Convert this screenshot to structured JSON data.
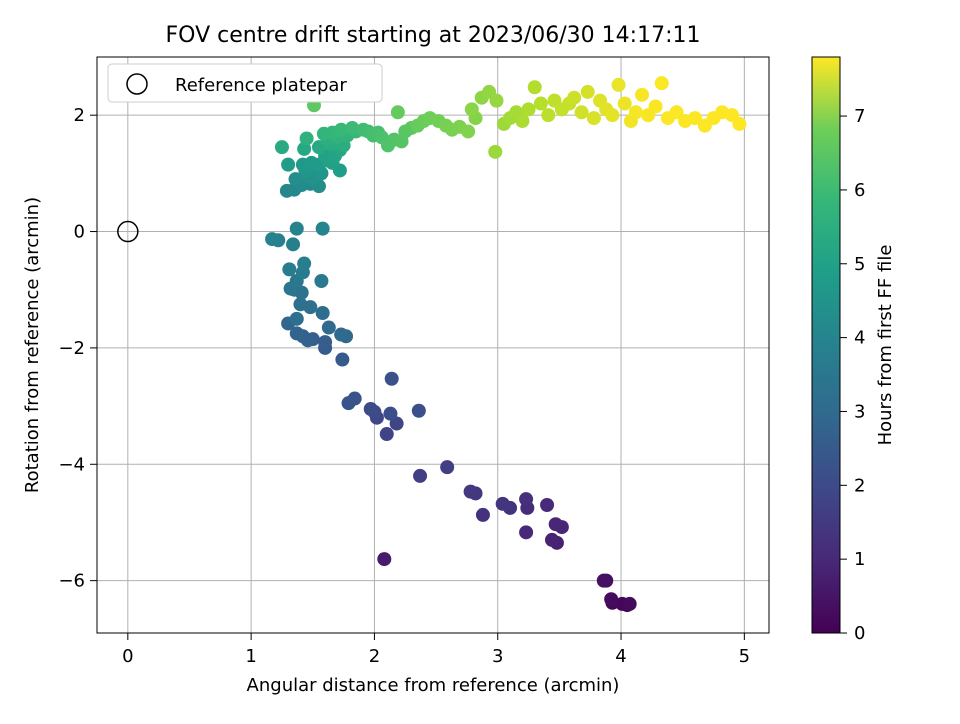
{
  "chart_data": {
    "type": "scatter",
    "title": "FOV centre drift starting at 2023/06/30 14:17:11",
    "xlabel": "Angular distance from reference (arcmin)",
    "ylabel": "Rotation from reference (arcmin)",
    "xlim": [
      -0.25,
      5.2
    ],
    "ylim": [
      -6.9,
      3.0
    ],
    "x_ticks": [
      0,
      1,
      2,
      3,
      4,
      5
    ],
    "y_ticks": [
      -6,
      -4,
      -2,
      0,
      2
    ],
    "grid": true,
    "legend": {
      "placement": "top-left",
      "entries": [
        "Reference platepar"
      ]
    },
    "reference_point": {
      "x": 0,
      "y": 0
    },
    "colorbar": {
      "label": "Hours from first FF file",
      "range": [
        0,
        7.8
      ],
      "ticks": [
        0,
        1,
        2,
        3,
        4,
        5,
        6,
        7
      ],
      "colormap": "viridis"
    },
    "points": [
      {
        "x": 4.05,
        "y": -6.42,
        "c": 0.05
      },
      {
        "x": 4.01,
        "y": -6.4,
        "c": 0.1
      },
      {
        "x": 3.93,
        "y": -6.38,
        "c": 0.15
      },
      {
        "x": 4.07,
        "y": -6.4,
        "c": 0.2
      },
      {
        "x": 3.92,
        "y": -6.32,
        "c": 0.25
      },
      {
        "x": 3.88,
        "y": -6.0,
        "c": 0.3
      },
      {
        "x": 3.86,
        "y": -6.0,
        "c": 0.35
      },
      {
        "x": 2.08,
        "y": -5.63,
        "c": 0.6
      },
      {
        "x": 3.48,
        "y": -5.35,
        "c": 0.7
      },
      {
        "x": 3.44,
        "y": -5.3,
        "c": 0.75
      },
      {
        "x": 3.52,
        "y": -5.08,
        "c": 0.8
      },
      {
        "x": 3.47,
        "y": -5.03,
        "c": 0.85
      },
      {
        "x": 3.23,
        "y": -5.17,
        "c": 0.9
      },
      {
        "x": 3.4,
        "y": -4.7,
        "c": 0.95
      },
      {
        "x": 3.24,
        "y": -4.75,
        "c": 1.0
      },
      {
        "x": 3.23,
        "y": -4.6,
        "c": 1.05
      },
      {
        "x": 2.88,
        "y": -4.87,
        "c": 1.1
      },
      {
        "x": 3.1,
        "y": -4.75,
        "c": 1.15
      },
      {
        "x": 3.04,
        "y": -4.68,
        "c": 1.2
      },
      {
        "x": 2.82,
        "y": -4.5,
        "c": 1.25
      },
      {
        "x": 2.78,
        "y": -4.47,
        "c": 1.3
      },
      {
        "x": 2.59,
        "y": -4.05,
        "c": 1.45
      },
      {
        "x": 2.37,
        "y": -4.2,
        "c": 1.5
      },
      {
        "x": 2.1,
        "y": -3.48,
        "c": 1.6
      },
      {
        "x": 2.18,
        "y": -3.3,
        "c": 1.65
      },
      {
        "x": 2.02,
        "y": -3.2,
        "c": 1.7
      },
      {
        "x": 2.0,
        "y": -3.1,
        "c": 1.75
      },
      {
        "x": 1.97,
        "y": -3.05,
        "c": 1.8
      },
      {
        "x": 2.13,
        "y": -3.13,
        "c": 1.85
      },
      {
        "x": 2.36,
        "y": -3.08,
        "c": 1.9
      },
      {
        "x": 2.14,
        "y": -2.53,
        "c": 1.95
      },
      {
        "x": 1.84,
        "y": -2.87,
        "c": 2.0
      },
      {
        "x": 1.79,
        "y": -2.95,
        "c": 2.05
      },
      {
        "x": 1.74,
        "y": -2.2,
        "c": 2.2
      },
      {
        "x": 1.6,
        "y": -2.0,
        "c": 2.25
      },
      {
        "x": 1.6,
        "y": -1.9,
        "c": 2.3
      },
      {
        "x": 1.5,
        "y": -1.85,
        "c": 2.35
      },
      {
        "x": 1.46,
        "y": -1.87,
        "c": 2.4
      },
      {
        "x": 1.42,
        "y": -1.8,
        "c": 2.45
      },
      {
        "x": 1.37,
        "y": -1.75,
        "c": 2.5
      },
      {
        "x": 1.3,
        "y": -1.58,
        "c": 2.55
      },
      {
        "x": 1.77,
        "y": -1.8,
        "c": 2.6
      },
      {
        "x": 1.73,
        "y": -1.77,
        "c": 2.65
      },
      {
        "x": 1.63,
        "y": -1.65,
        "c": 2.7
      },
      {
        "x": 1.58,
        "y": -1.4,
        "c": 2.75
      },
      {
        "x": 1.37,
        "y": -1.5,
        "c": 2.8
      },
      {
        "x": 1.48,
        "y": -1.3,
        "c": 2.85
      },
      {
        "x": 1.4,
        "y": -1.25,
        "c": 2.9
      },
      {
        "x": 1.41,
        "y": -1.05,
        "c": 2.95
      },
      {
        "x": 1.35,
        "y": -1.0,
        "c": 3.0
      },
      {
        "x": 1.32,
        "y": -0.98,
        "c": 3.05
      },
      {
        "x": 1.37,
        "y": -0.85,
        "c": 3.1
      },
      {
        "x": 1.57,
        "y": -0.85,
        "c": 3.15
      },
      {
        "x": 1.42,
        "y": -0.7,
        "c": 3.2
      },
      {
        "x": 1.31,
        "y": -0.65,
        "c": 3.25
      },
      {
        "x": 1.43,
        "y": -0.55,
        "c": 3.3
      },
      {
        "x": 1.34,
        "y": -0.22,
        "c": 3.35
      },
      {
        "x": 1.22,
        "y": -0.15,
        "c": 3.4
      },
      {
        "x": 1.17,
        "y": -0.13,
        "c": 3.45
      },
      {
        "x": 1.37,
        "y": 0.05,
        "c": 3.5
      },
      {
        "x": 1.58,
        "y": 0.05,
        "c": 3.55
      },
      {
        "x": 1.29,
        "y": 0.7,
        "c": 3.6
      },
      {
        "x": 1.35,
        "y": 0.72,
        "c": 3.65
      },
      {
        "x": 1.41,
        "y": 0.8,
        "c": 3.7
      },
      {
        "x": 1.48,
        "y": 0.82,
        "c": 3.75
      },
      {
        "x": 1.55,
        "y": 0.78,
        "c": 3.8
      },
      {
        "x": 1.36,
        "y": 0.9,
        "c": 3.85
      },
      {
        "x": 1.45,
        "y": 0.95,
        "c": 3.9
      },
      {
        "x": 1.5,
        "y": 0.92,
        "c": 3.95
      },
      {
        "x": 1.52,
        "y": 1.02,
        "c": 4.0
      },
      {
        "x": 1.57,
        "y": 1.0,
        "c": 4.05
      },
      {
        "x": 1.44,
        "y": 1.05,
        "c": 4.1
      },
      {
        "x": 1.42,
        "y": 1.15,
        "c": 4.15
      },
      {
        "x": 1.49,
        "y": 1.18,
        "c": 4.2
      },
      {
        "x": 1.55,
        "y": 1.15,
        "c": 4.25
      },
      {
        "x": 1.3,
        "y": 1.15,
        "c": 4.3
      },
      {
        "x": 1.72,
        "y": 1.05,
        "c": 4.35
      },
      {
        "x": 1.62,
        "y": 1.22,
        "c": 4.4
      },
      {
        "x": 1.66,
        "y": 1.18,
        "c": 4.45
      },
      {
        "x": 1.6,
        "y": 1.3,
        "c": 4.5
      },
      {
        "x": 1.68,
        "y": 1.3,
        "c": 4.55
      },
      {
        "x": 1.72,
        "y": 1.4,
        "c": 4.6
      },
      {
        "x": 1.43,
        "y": 1.42,
        "c": 4.65
      },
      {
        "x": 1.55,
        "y": 1.45,
        "c": 4.7
      },
      {
        "x": 1.25,
        "y": 1.45,
        "c": 4.75
      },
      {
        "x": 1.65,
        "y": 1.5,
        "c": 4.8
      },
      {
        "x": 1.75,
        "y": 1.48,
        "c": 4.85
      },
      {
        "x": 1.62,
        "y": 1.58,
        "c": 4.9
      },
      {
        "x": 1.45,
        "y": 1.6,
        "c": 4.95
      },
      {
        "x": 1.7,
        "y": 1.62,
        "c": 5.0
      },
      {
        "x": 1.78,
        "y": 1.65,
        "c": 5.05
      },
      {
        "x": 1.59,
        "y": 1.68,
        "c": 5.1
      },
      {
        "x": 1.66,
        "y": 1.7,
        "c": 5.15
      },
      {
        "x": 1.85,
        "y": 1.72,
        "c": 5.2
      },
      {
        "x": 1.73,
        "y": 1.75,
        "c": 5.25
      },
      {
        "x": 1.82,
        "y": 1.78,
        "c": 5.3
      },
      {
        "x": 1.91,
        "y": 1.75,
        "c": 5.35
      },
      {
        "x": 1.95,
        "y": 1.72,
        "c": 5.4
      },
      {
        "x": 1.99,
        "y": 1.65,
        "c": 5.45
      },
      {
        "x": 2.03,
        "y": 1.7,
        "c": 5.5
      },
      {
        "x": 2.06,
        "y": 1.62,
        "c": 5.55
      },
      {
        "x": 2.11,
        "y": 1.48,
        "c": 5.6
      },
      {
        "x": 2.16,
        "y": 1.58,
        "c": 5.65
      },
      {
        "x": 2.22,
        "y": 1.55,
        "c": 5.7
      },
      {
        "x": 2.25,
        "y": 1.72,
        "c": 5.75
      },
      {
        "x": 2.3,
        "y": 1.78,
        "c": 5.8
      },
      {
        "x": 1.51,
        "y": 2.17,
        "c": 5.85
      },
      {
        "x": 2.19,
        "y": 2.05,
        "c": 5.9
      },
      {
        "x": 2.35,
        "y": 1.82,
        "c": 5.95
      },
      {
        "x": 2.4,
        "y": 1.9,
        "c": 6.0
      },
      {
        "x": 2.45,
        "y": 1.95,
        "c": 6.05
      },
      {
        "x": 2.52,
        "y": 1.9,
        "c": 6.1
      },
      {
        "x": 2.58,
        "y": 1.82,
        "c": 6.15
      },
      {
        "x": 2.63,
        "y": 1.75,
        "c": 6.2
      },
      {
        "x": 2.69,
        "y": 1.8,
        "c": 6.25
      },
      {
        "x": 2.76,
        "y": 1.72,
        "c": 6.3
      },
      {
        "x": 2.82,
        "y": 1.95,
        "c": 6.35
      },
      {
        "x": 2.79,
        "y": 2.1,
        "c": 6.4
      },
      {
        "x": 2.87,
        "y": 2.3,
        "c": 6.45
      },
      {
        "x": 2.93,
        "y": 2.4,
        "c": 6.5
      },
      {
        "x": 2.99,
        "y": 2.25,
        "c": 6.55
      },
      {
        "x": 2.98,
        "y": 1.37,
        "c": 6.6
      },
      {
        "x": 3.05,
        "y": 1.85,
        "c": 6.65
      },
      {
        "x": 3.1,
        "y": 1.95,
        "c": 6.7
      },
      {
        "x": 3.15,
        "y": 2.05,
        "c": 6.75
      },
      {
        "x": 3.2,
        "y": 1.9,
        "c": 6.8
      },
      {
        "x": 3.25,
        "y": 2.1,
        "c": 6.85
      },
      {
        "x": 3.3,
        "y": 2.48,
        "c": 6.9
      },
      {
        "x": 3.35,
        "y": 2.2,
        "c": 6.95
      },
      {
        "x": 3.41,
        "y": 2.0,
        "c": 7.0
      },
      {
        "x": 3.46,
        "y": 2.25,
        "c": 7.05
      },
      {
        "x": 3.52,
        "y": 2.1,
        "c": 7.1
      },
      {
        "x": 3.58,
        "y": 2.2,
        "c": 7.15
      },
      {
        "x": 3.62,
        "y": 2.3,
        "c": 7.2
      },
      {
        "x": 3.68,
        "y": 2.05,
        "c": 7.25
      },
      {
        "x": 3.73,
        "y": 2.4,
        "c": 7.3
      },
      {
        "x": 3.78,
        "y": 1.95,
        "c": 7.35
      },
      {
        "x": 3.83,
        "y": 2.25,
        "c": 7.4
      },
      {
        "x": 3.88,
        "y": 2.1,
        "c": 7.45
      },
      {
        "x": 3.93,
        "y": 2.0,
        "c": 7.5
      },
      {
        "x": 3.98,
        "y": 2.52,
        "c": 7.55
      },
      {
        "x": 4.03,
        "y": 2.2,
        "c": 7.6
      },
      {
        "x": 4.08,
        "y": 1.9,
        "c": 7.65
      },
      {
        "x": 4.12,
        "y": 2.05,
        "c": 7.7
      },
      {
        "x": 4.17,
        "y": 2.35,
        "c": 7.72
      },
      {
        "x": 4.22,
        "y": 2.0,
        "c": 7.74
      },
      {
        "x": 4.28,
        "y": 2.15,
        "c": 7.75
      },
      {
        "x": 4.33,
        "y": 2.55,
        "c": 7.76
      },
      {
        "x": 4.38,
        "y": 1.95,
        "c": 7.77
      },
      {
        "x": 4.45,
        "y": 2.05,
        "c": 7.78
      },
      {
        "x": 4.52,
        "y": 1.9,
        "c": 7.78
      },
      {
        "x": 4.6,
        "y": 1.95,
        "c": 7.79
      },
      {
        "x": 4.68,
        "y": 1.82,
        "c": 7.79
      },
      {
        "x": 4.75,
        "y": 1.95,
        "c": 7.8
      },
      {
        "x": 4.82,
        "y": 2.05,
        "c": 7.8
      },
      {
        "x": 4.9,
        "y": 2.0,
        "c": 7.8
      },
      {
        "x": 4.96,
        "y": 1.85,
        "c": 7.8
      }
    ]
  }
}
